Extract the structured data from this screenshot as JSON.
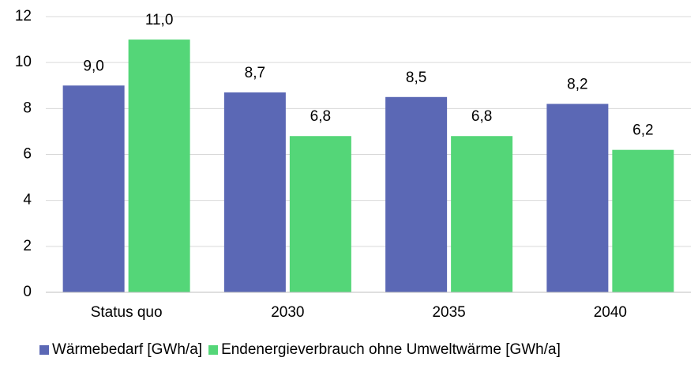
{
  "chart_data": {
    "type": "bar",
    "categories": [
      "Status quo",
      "2030",
      "2035",
      "2040"
    ],
    "series": [
      {
        "name": "Wärmebedarf [GWh/a]",
        "color": "#5b68b5",
        "values": [
          9.0,
          8.7,
          8.5,
          8.2
        ],
        "value_labels": [
          "9,0",
          "8,7",
          "8,5",
          "8,2"
        ]
      },
      {
        "name": "Endenergieverbrauch ohne Umweltwärme [GWh/a]",
        "color": "#54d678",
        "values": [
          11.0,
          6.8,
          6.8,
          6.2
        ],
        "value_labels": [
          "11,0",
          "6,8",
          "6,8",
          "6,2"
        ]
      }
    ],
    "ylim": [
      0,
      12
    ],
    "yticks": [
      0,
      2,
      4,
      6,
      8,
      10,
      12
    ],
    "grid": true,
    "legend": "bottom"
  }
}
